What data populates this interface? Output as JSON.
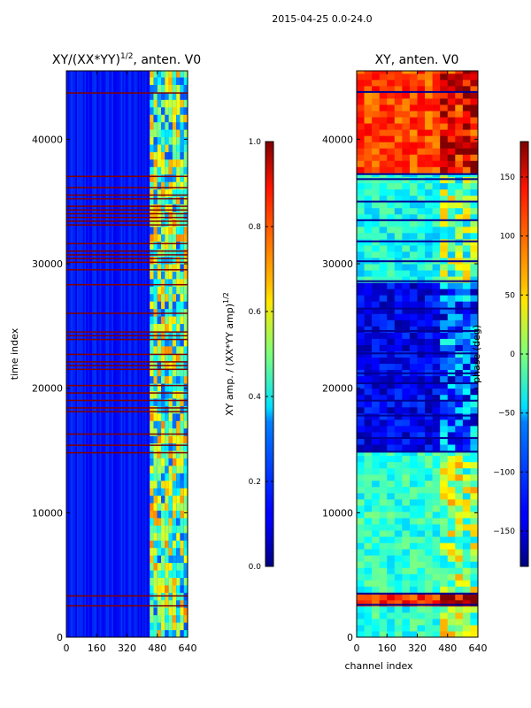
{
  "figure": {
    "suptitle": "2015-04-25 0.0-24.0",
    "xlabel_shared": "channel index"
  },
  "chart_data": [
    {
      "type": "heatmap",
      "title": "XY/(XX*YY)",
      "title_exponent": "1/2",
      "title_suffix": ", anten. V0",
      "ylabel": "time index",
      "xlim": [
        0,
        640
      ],
      "ylim": [
        0,
        45500
      ],
      "xticks": [
        "0",
        "160",
        "320",
        "480",
        "640"
      ],
      "xtick_values": [
        0,
        160,
        320,
        480,
        640
      ],
      "yticks": [
        "0",
        "10000",
        "20000",
        "30000",
        "40000"
      ],
      "ytick_values": [
        0,
        10000,
        20000,
        30000,
        40000
      ],
      "colormap": "jet",
      "colorbar": {
        "label": "XY amp. / (XX*YY amp)",
        "label_exponent": "1/2",
        "min": 0.0,
        "max": 1.0,
        "ticks": [
          "0.0",
          "0.2",
          "0.4",
          "0.6",
          "0.8",
          "1.0"
        ],
        "tick_values": [
          0.0,
          0.2,
          0.4,
          0.6,
          0.8,
          1.0
        ]
      },
      "flagged_rows_value": 1.0,
      "flagged_time_ranges": [
        [
          2500,
          2700
        ],
        [
          3300,
          3400
        ],
        [
          14800,
          16500
        ],
        [
          17500,
          21000
        ],
        [
          21500,
          27000
        ],
        [
          28000,
          37200
        ],
        [
          43700,
          43900
        ]
      ],
      "right_band_channels": [
        440,
        640
      ]
    },
    {
      "type": "heatmap",
      "title": "XY, anten. V0",
      "xlim": [
        0,
        640
      ],
      "ylim": [
        0,
        45500
      ],
      "xticks": [
        "0",
        "160",
        "320",
        "480",
        "640"
      ],
      "xtick_values": [
        0,
        160,
        320,
        480,
        640
      ],
      "yticks": [
        "0",
        "10000",
        "20000",
        "30000",
        "40000"
      ],
      "ytick_values": [
        0,
        10000,
        20000,
        30000,
        40000
      ],
      "colormap": "jet",
      "colorbar": {
        "label": "phase (deg)",
        "min": -180,
        "max": 180,
        "ticks": [
          "−150",
          "−100",
          "−50",
          "0",
          "50",
          "100",
          "150"
        ],
        "tick_values": [
          -150,
          -100,
          -50,
          0,
          50,
          100,
          150
        ]
      },
      "time_segments": [
        {
          "range": [
            0,
            2500
          ],
          "phase": -30
        },
        {
          "range": [
            2500,
            3600
          ],
          "phase": 120
        },
        {
          "range": [
            3600,
            15000
          ],
          "phase": -30
        },
        {
          "range": [
            15000,
            28500
          ],
          "phase": -140
        },
        {
          "range": [
            28500,
            37300
          ],
          "phase": -40
        },
        {
          "range": [
            37300,
            45500
          ],
          "phase": 110
        }
      ]
    }
  ]
}
